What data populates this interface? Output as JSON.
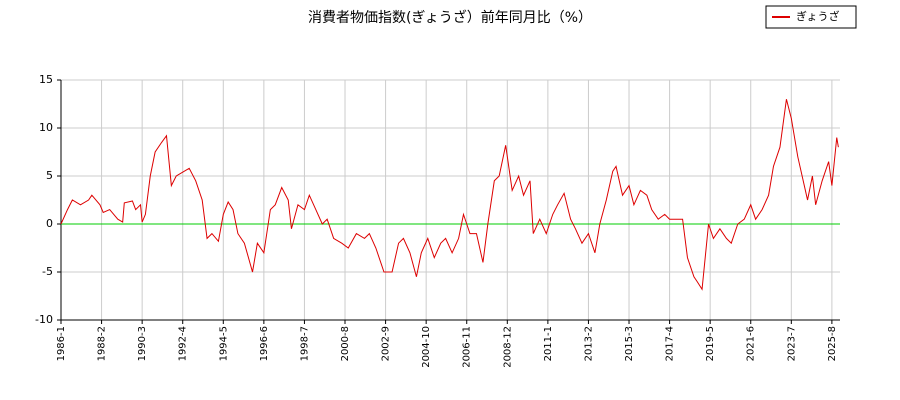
{
  "chart_data": {
    "type": "line",
    "title": "消費者物価指数(ぎょうざ）前年同月比（%）",
    "x": [
      "1986-1",
      "1986-5",
      "1986-8",
      "1987-1",
      "1987-6",
      "1987-8",
      "1988-1",
      "1988-3",
      "1988-7",
      "1988-12",
      "1989-3",
      "1989-4",
      "1989-9",
      "1989-11",
      "1990-2",
      "1990-3",
      "1990-5",
      "1990-8",
      "1990-11",
      "1991-3",
      "1991-6",
      "1991-9",
      "1991-12",
      "1992-5",
      "1992-8",
      "1992-12",
      "1993-4",
      "1993-7",
      "1993-10",
      "1994-2",
      "1994-5",
      "1994-8",
      "1994-11",
      "1995-2",
      "1995-6",
      "1995-11",
      "1996-2",
      "1996-6",
      "1996-10",
      "1997-1",
      "1997-5",
      "1997-9",
      "1997-11",
      "1998-3",
      "1998-7",
      "1998-10",
      "1999-2",
      "1999-6",
      "1999-9",
      "2000-1",
      "2000-6",
      "2000-10",
      "2001-3",
      "2001-8",
      "2001-11",
      "2002-3",
      "2002-8",
      "2003-1",
      "2003-5",
      "2003-8",
      "2003-12",
      "2004-4",
      "2004-7",
      "2004-11",
      "2005-3",
      "2005-7",
      "2005-10",
      "2006-2",
      "2006-6",
      "2006-9",
      "2007-1",
      "2007-5",
      "2007-9",
      "2007-12",
      "2008-4",
      "2008-7",
      "2008-11",
      "2009-3",
      "2009-7",
      "2009-10",
      "2010-2",
      "2010-4",
      "2010-8",
      "2010-12",
      "2011-4",
      "2011-7",
      "2011-11",
      "2012-3",
      "2012-6",
      "2012-10",
      "2013-2",
      "2013-6",
      "2013-9",
      "2014-1",
      "2014-5",
      "2014-7",
      "2014-11",
      "2015-3",
      "2015-6",
      "2015-10",
      "2016-2",
      "2016-5",
      "2016-9",
      "2017-1",
      "2017-4",
      "2017-8",
      "2017-12",
      "2018-3",
      "2018-7",
      "2018-9",
      "2018-12",
      "2019-4",
      "2019-7",
      "2019-11",
      "2020-3",
      "2020-6",
      "2020-10",
      "2021-2",
      "2021-6",
      "2021-9",
      "2022-1",
      "2022-5",
      "2022-8",
      "2022-12",
      "2023-4",
      "2023-7",
      "2023-11",
      "2024-3",
      "2024-5",
      "2024-8",
      "2024-10",
      "2025-2",
      "2025-6",
      "2025-8",
      "2025-11",
      "2025-12"
    ],
    "series": [
      {
        "name": "ぎょうざ",
        "color": "#dd0000",
        "values": [
          0,
          1.5,
          2.5,
          2.0,
          2.5,
          3.0,
          2.0,
          1.2,
          1.5,
          0.5,
          0.2,
          2.2,
          2.4,
          1.5,
          2.0,
          0.2,
          1.0,
          5.0,
          7.5,
          8.5,
          9.2,
          4.0,
          5.0,
          5.5,
          5.8,
          4.5,
          2.5,
          -1.5,
          -1.0,
          -1.8,
          1.0,
          2.3,
          1.5,
          -1.0,
          -2.0,
          -5.0,
          -2.0,
          -3.0,
          1.5,
          2.0,
          3.8,
          2.5,
          -0.5,
          2.0,
          1.5,
          3.0,
          1.5,
          0.0,
          0.5,
          -1.5,
          -2.0,
          -2.5,
          -1.0,
          -1.5,
          -1.0,
          -2.5,
          -5.0,
          -5.0,
          -2.0,
          -1.5,
          -3.0,
          -5.5,
          -3.0,
          -1.5,
          -3.5,
          -2.0,
          -1.5,
          -3.0,
          -1.5,
          1.0,
          -1.0,
          -1.0,
          -4.0,
          0.0,
          4.5,
          5.0,
          8.2,
          3.5,
          5.0,
          3.0,
          4.5,
          -1.0,
          0.5,
          -1.0,
          1.0,
          2.0,
          3.2,
          0.5,
          -0.5,
          -2.0,
          -1.0,
          -3.0,
          0.0,
          2.5,
          5.5,
          6.0,
          3.0,
          4.0,
          2.0,
          3.5,
          3.0,
          1.5,
          0.5,
          1.0,
          0.5,
          0.5,
          0.5,
          -3.5,
          -5.5,
          -6.0,
          -6.8,
          0.0,
          -1.5,
          -0.5,
          -1.5,
          -2.0,
          0.0,
          0.5,
          2.0,
          0.5,
          1.5,
          3.0,
          6.0,
          8.0,
          13.0,
          11.0,
          7.0,
          4.0,
          2.5,
          5.0,
          2.0,
          4.5,
          6.5,
          4.0,
          9.0,
          8.0
        ]
      }
    ],
    "xlim": [
      "1986-1",
      "2026-1"
    ],
    "xticks": [
      "1986-1",
      "1988-2",
      "1990-3",
      "1992-4",
      "1994-5",
      "1996-6",
      "1998-7",
      "2000-8",
      "2002-9",
      "2004-10",
      "2006-11",
      "2008-12",
      "2011-1",
      "2013-2",
      "2015-3",
      "2017-4",
      "2019-5",
      "2021-6",
      "2023-7",
      "2025-8"
    ],
    "ylim": [
      -10,
      15
    ],
    "yticks": [
      -10,
      -5,
      0,
      5,
      10,
      15
    ],
    "grid": true,
    "zero_line_color": "#00cc00",
    "legend": "top-right"
  }
}
